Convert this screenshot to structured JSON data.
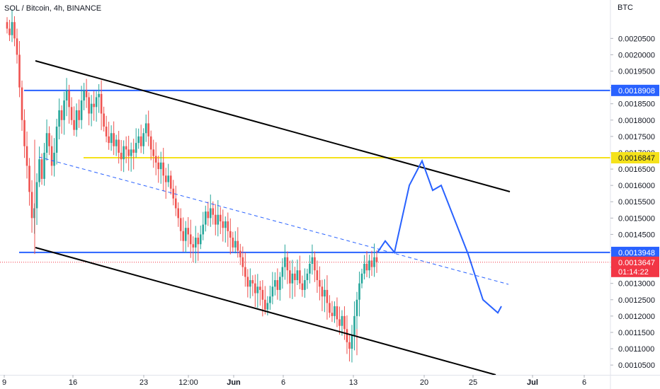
{
  "chart_data": {
    "type": "candlestick",
    "title": "SOL / Bitcoin, 4h, BINANCE",
    "currency": "BTC",
    "ylim": [
      0.00102,
      0.00212
    ],
    "y_ticks": [
      "0.0020500",
      "0.0020000",
      "0.0019500",
      "0.0019000",
      "0.0018500",
      "0.0018000",
      "0.0017500",
      "0.0017000",
      "0.0016500",
      "0.0016000",
      "0.0015500",
      "0.0015000",
      "0.0014500",
      "0.0014000",
      "0.0013500",
      "0.0013000",
      "0.0012500",
      "0.0012000",
      "0.0011500",
      "0.0011000",
      "0.0010500"
    ],
    "x_ticks": [
      "9",
      "16",
      "23",
      "12:00",
      "Jun",
      "6",
      "13",
      "20",
      "25",
      "Jul",
      "6"
    ],
    "price_levels": [
      {
        "label": "0.0018908",
        "value": 0.0018908,
        "color": "#2962ff"
      },
      {
        "label": "0.0016847",
        "value": 0.0016847,
        "color": "#f5e21b"
      },
      {
        "label": "0.0013948",
        "value": 0.0013948,
        "color": "#2962ff"
      }
    ],
    "current_price": {
      "label": "0.0013647",
      "countdown": "01:14:22",
      "value": 0.0013647,
      "color": "#f23645"
    },
    "colors": {
      "up": "#26a69a",
      "down": "#ef5350",
      "channel": "#000000",
      "projection": "#2962ff",
      "midline": "#2962ff"
    },
    "closes": [
      0.00208,
      0.00206,
      0.0021,
      0.00205,
      0.002,
      0.0019,
      0.0018,
      0.00172,
      0.00166,
      0.00158,
      0.0015,
      0.00153,
      0.00161,
      0.00168,
      0.00162,
      0.0017,
      0.00176,
      0.00172,
      0.00166,
      0.0017,
      0.00178,
      0.00183,
      0.0018,
      0.00186,
      0.00189,
      0.00184,
      0.0018,
      0.00177,
      0.00183,
      0.0018,
      0.00186,
      0.00189,
      0.00187,
      0.00182,
      0.00185,
      0.00184,
      0.00187,
      0.00188,
      0.00182,
      0.00178,
      0.00175,
      0.00173,
      0.00176,
      0.00172,
      0.00174,
      0.0017,
      0.00168,
      0.00172,
      0.00171,
      0.00169,
      0.00171,
      0.0017,
      0.00173,
      0.00175,
      0.00172,
      0.00176,
      0.00179,
      0.00175,
      0.00171,
      0.00169,
      0.00167,
      0.00165,
      0.00167,
      0.00163,
      0.00161,
      0.00163,
      0.00159,
      0.00156,
      0.00153,
      0.0015,
      0.00146,
      0.00143,
      0.00147,
      0.00145,
      0.00142,
      0.00141,
      0.00144,
      0.00142,
      0.00145,
      0.00148,
      0.00152,
      0.0015,
      0.00153,
      0.00151,
      0.00148,
      0.00151,
      0.00149,
      0.00147,
      0.00149,
      0.00146,
      0.00144,
      0.00141,
      0.00143,
      0.0014,
      0.00138,
      0.00135,
      0.00132,
      0.00129,
      0.00131,
      0.0013,
      0.00127,
      0.00129,
      0.00128,
      0.00125,
      0.00122,
      0.00124,
      0.00126,
      0.00129,
      0.00131,
      0.00128,
      0.00132,
      0.00135,
      0.00138,
      0.00134,
      0.0013,
      0.00133,
      0.00131,
      0.00134,
      0.0013,
      0.00128,
      0.00131,
      0.00133,
      0.00136,
      0.00138,
      0.00134,
      0.00131,
      0.00129,
      0.00126,
      0.00128,
      0.00124,
      0.00121,
      0.0012,
      0.00123,
      0.00119,
      0.00117,
      0.0012,
      0.00116,
      0.00112,
      0.0011,
      0.00114,
      0.0012,
      0.00125,
      0.0013,
      0.00133,
      0.00136,
      0.00134,
      0.00137,
      0.00135,
      0.00138,
      0.001365
    ],
    "projection": [
      0.0013948,
      0.00143,
      0.0013948,
      0.0016,
      0.001675,
      0.001585,
      0.0016,
      0.00139,
      0.00125,
      0.00121,
      0.00123
    ],
    "upper_channel": [
      [
        0,
        0.00199
      ],
      [
        1,
        0.00156
      ]
    ],
    "lower_channel": [
      [
        0,
        0.00139
      ],
      [
        1,
        0.00102
      ]
    ]
  }
}
